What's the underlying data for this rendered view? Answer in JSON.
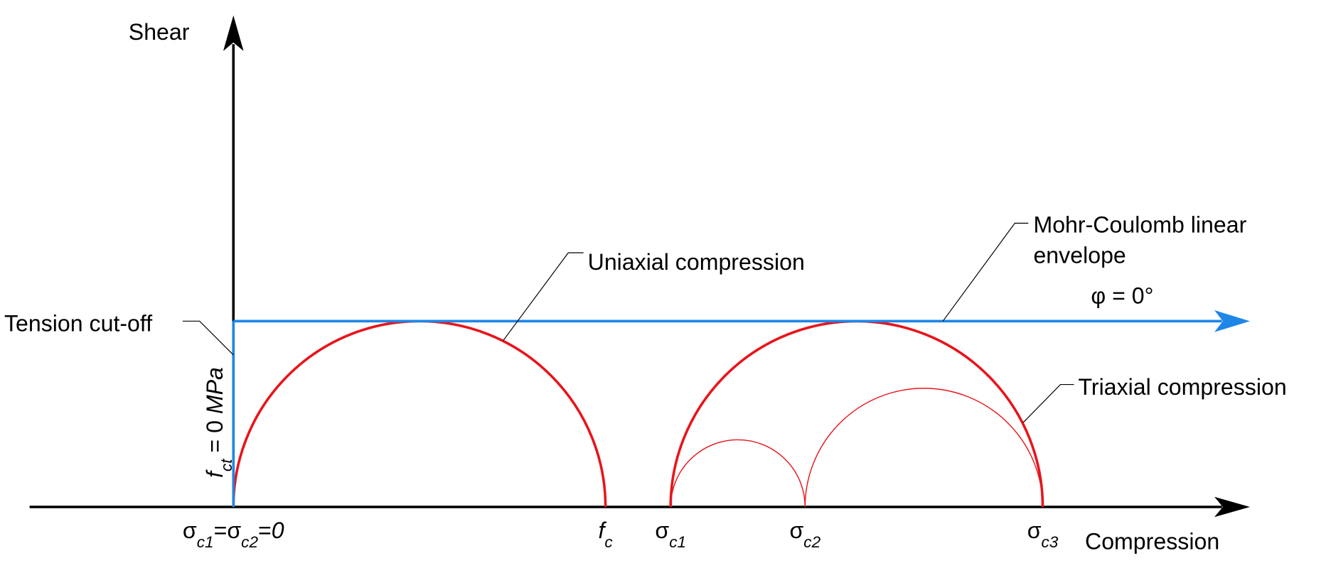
{
  "axes": {
    "y_label": "Shear",
    "x_label": "Compression"
  },
  "annotations": {
    "uniaxial": "Uniaxial compression",
    "mohr_coulomb": [
      "Mohr-Coulomb linear",
      "envelope"
    ],
    "friction_angle": "φ = 0°",
    "triaxial": "Triaxial compression",
    "tension_cutoff": "Tension cut-off",
    "tensile_strength": [
      {
        "text": "f",
        "style": "italic"
      },
      {
        "text": "ct",
        "style": "sub"
      },
      {
        "text": " = 0 "
      },
      {
        "text": "MPa",
        "style": "italic"
      }
    ]
  },
  "tick_labels": [
    [
      {
        "text": "σ"
      },
      {
        "text": "c1",
        "style": "sub"
      },
      {
        "text": "=σ"
      },
      {
        "text": "c2",
        "style": "sub"
      },
      {
        "text": "="
      },
      {
        "text": "0",
        "style": "italic"
      }
    ],
    [
      {
        "text": "f",
        "style": "italic"
      },
      {
        "text": "c",
        "style": "sub"
      }
    ],
    [
      {
        "text": "σ"
      },
      {
        "text": "c1",
        "style": "sub"
      }
    ],
    [
      {
        "text": "σ"
      },
      {
        "text": "c2",
        "style": "sub"
      }
    ],
    [
      {
        "text": "σ"
      },
      {
        "text": "c3",
        "style": "sub"
      }
    ]
  ]
}
